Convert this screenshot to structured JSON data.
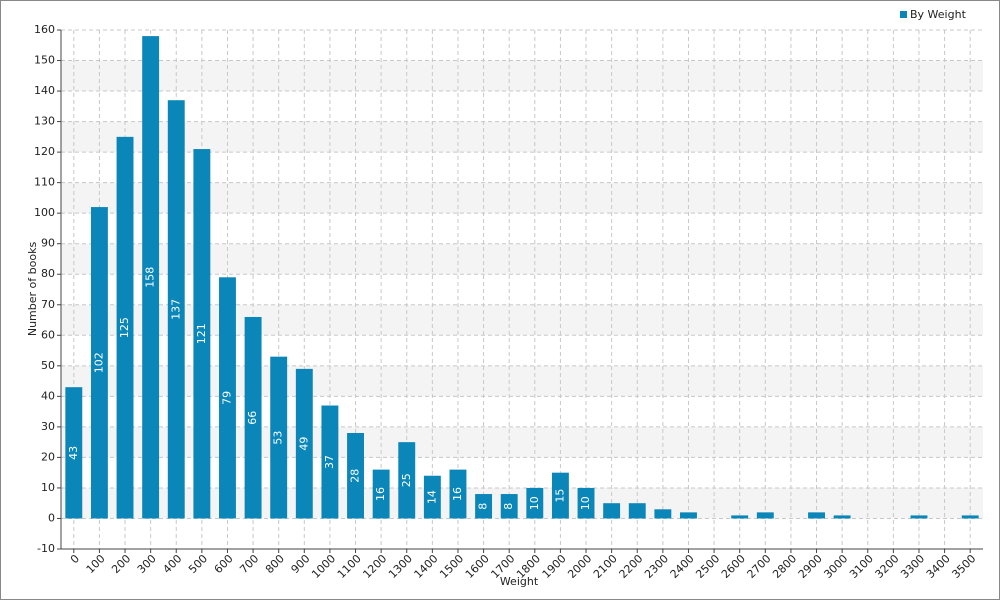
{
  "chart_data": {
    "type": "bar",
    "x_label": "Weight",
    "y_label": "Number of books",
    "categories": [
      "0",
      "100",
      "200",
      "300",
      "400",
      "500",
      "600",
      "700",
      "800",
      "900",
      "1000",
      "1100",
      "1200",
      "1300",
      "1400",
      "1500",
      "1600",
      "1700",
      "1800",
      "1900",
      "2000",
      "2100",
      "2200",
      "2300",
      "2400",
      "2500",
      "2600",
      "2700",
      "2800",
      "2900",
      "3000",
      "3100",
      "3200",
      "3300",
      "3400",
      "3500"
    ],
    "series": [
      {
        "name": "By Weight",
        "color": "#0a86b9",
        "values": [
          43,
          102,
          125,
          158,
          137,
          121,
          79,
          66,
          53,
          49,
          37,
          28,
          16,
          25,
          14,
          16,
          8,
          8,
          10,
          15,
          10,
          5,
          5,
          3,
          2,
          0,
          1,
          2,
          0,
          2,
          1,
          0,
          0,
          1,
          0,
          1
        ]
      }
    ],
    "ylim": [
      -10,
      160
    ],
    "yticks": [
      -10,
      0,
      10,
      20,
      30,
      40,
      50,
      60,
      70,
      80,
      90,
      100,
      110,
      120,
      130,
      140,
      150,
      160
    ],
    "grid": true,
    "legend": "top-right"
  }
}
